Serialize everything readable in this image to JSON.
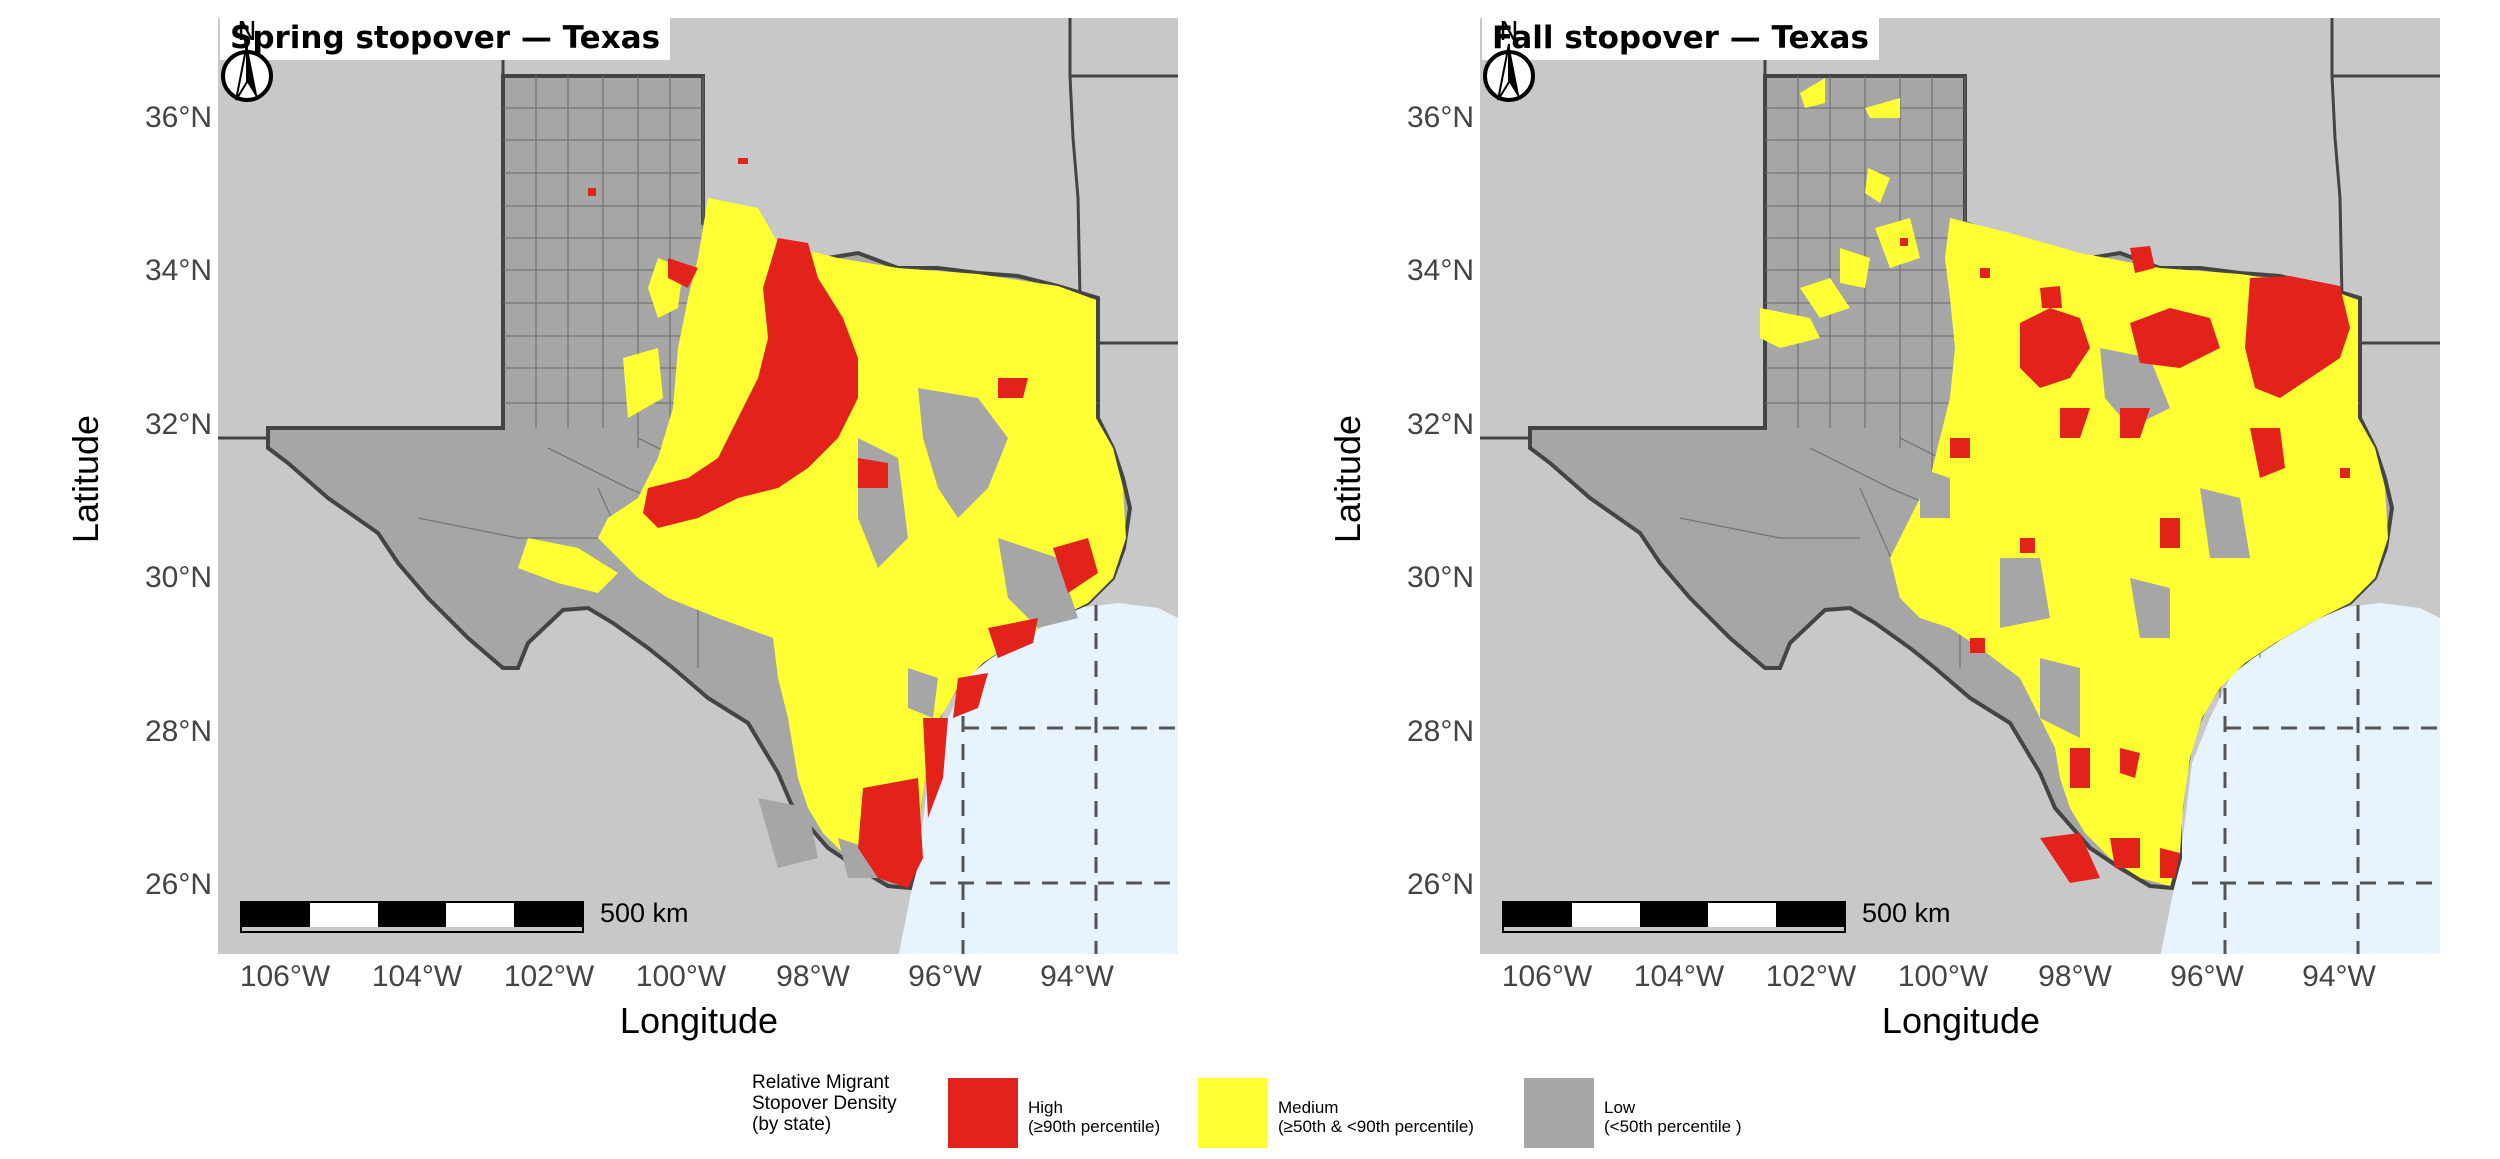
{
  "panels": [
    {
      "title": "Spring stopover — Texas",
      "lat_ticks": [
        "36°N",
        "34°N",
        "32°N",
        "30°N",
        "28°N",
        "26°N"
      ],
      "lon_ticks": [
        "106°W",
        "104°W",
        "102°W",
        "100°W",
        "98°W",
        "96°W",
        "94°W"
      ],
      "xlabel": "Longitude",
      "ylabel": "Latitude",
      "scale_label": "500 km",
      "north_label": "N"
    },
    {
      "title": "Fall stopover — Texas",
      "lat_ticks": [
        "36°N",
        "34°N",
        "32°N",
        "30°N",
        "28°N",
        "26°N"
      ],
      "lon_ticks": [
        "106°W",
        "104°W",
        "102°W",
        "100°W",
        "98°W",
        "96°W",
        "94°W"
      ],
      "xlabel": "Longitude",
      "ylabel": "Latitude",
      "scale_label": "500 km",
      "north_label": "N"
    }
  ],
  "legend": {
    "title_lines": [
      "Relative Migrant",
      "Stopover Density",
      "(by state)"
    ],
    "items": [
      {
        "line1": "High",
        "line2": "(≥90th percentile)",
        "color": "#e3221c"
      },
      {
        "line1": "Medium",
        "line2": "(≥50th & <90th percentile)",
        "color": "#ffff33"
      },
      {
        "line1": "Low",
        "line2": "(<50th percentile )",
        "color": "#a6a6a6"
      }
    ]
  },
  "colors": {
    "land_background": "#c8c8c8",
    "water": "#e8f4fd",
    "texas_low": "#a6a6a6",
    "high": "#e3221c",
    "medium": "#ffff33",
    "state_border": "#444444"
  },
  "map_extent": {
    "lon_min": -107.5,
    "lon_max": -92.8,
    "lat_min": 25.2,
    "lat_max": 36.9
  }
}
